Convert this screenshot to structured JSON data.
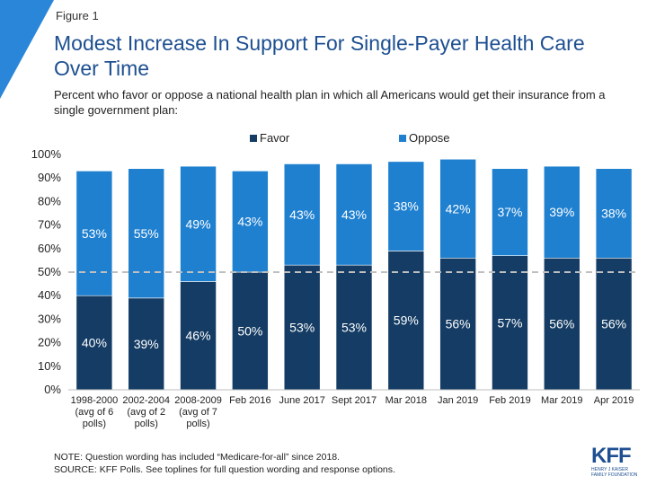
{
  "header": {
    "figure_label": "Figure 1",
    "title": "Modest Increase In Support For Single-Payer Health Care Over Time",
    "subtitle": "Percent who favor or oppose a national health plan in which all Americans would get their insurance from a single government plan:"
  },
  "footer": {
    "note": "NOTE: Question wording has included “Medicare-for-all” since 2018.",
    "source": "SOURCE: KFF Polls. See toplines for full question wording and response options.",
    "logo_text": "KFF",
    "logo_subtext_1": "Henry J Kaiser",
    "logo_subtext_2": "Family Foundation"
  },
  "colors": {
    "favor": "#143c64",
    "oppose": "#1f80d0",
    "accent": "#2a86d8",
    "reference_line": "#bfbfbf"
  },
  "chart_data": {
    "type": "bar",
    "stacked": true,
    "categories": [
      [
        "1998-2000",
        "(avg of 6",
        "polls)"
      ],
      [
        "2002-2004",
        "(avg of 2",
        "polls)"
      ],
      [
        "2008-2009",
        "(avg of 7",
        "polls)"
      ],
      [
        "Feb 2016"
      ],
      [
        "June 2017"
      ],
      [
        "Sept 2017"
      ],
      [
        "Mar 2018"
      ],
      [
        "Jan 2019"
      ],
      [
        "Feb 2019"
      ],
      [
        "Mar 2019"
      ],
      [
        "Apr 2019"
      ]
    ],
    "series": [
      {
        "name": "Favor",
        "values": [
          40,
          39,
          46,
          50,
          53,
          53,
          59,
          56,
          57,
          56,
          56
        ]
      },
      {
        "name": "Oppose",
        "values": [
          53,
          55,
          49,
          43,
          43,
          43,
          38,
          42,
          37,
          39,
          38
        ]
      }
    ],
    "yticks": [
      "0%",
      "10%",
      "20%",
      "30%",
      "40%",
      "50%",
      "60%",
      "70%",
      "80%",
      "90%",
      "100%"
    ],
    "ylim": [
      0,
      100
    ],
    "reference_line_value": 50,
    "legend": "top-center",
    "data_label_suffix": "%"
  }
}
